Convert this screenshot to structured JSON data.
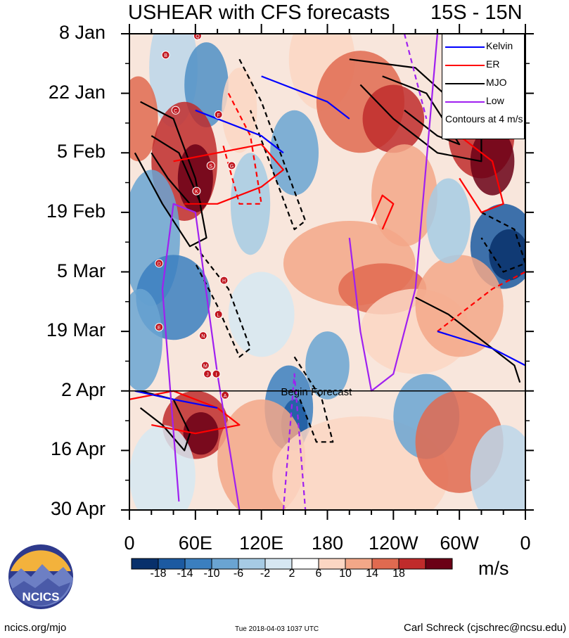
{
  "chart_data": {
    "type": "heatmap",
    "title": "USHEAR with CFS forecasts",
    "region": "15S - 15N",
    "y_axis": {
      "type": "time",
      "ticks": [
        "8 Jan",
        "22 Jan",
        "5 Feb",
        "19 Feb",
        "5 Mar",
        "19 Mar",
        "2 Apr",
        "16 Apr",
        "30 Apr"
      ],
      "range": [
        "8 Jan",
        "30 Apr"
      ]
    },
    "x_axis": {
      "type": "longitude",
      "ticks": [
        "0",
        "60E",
        "120E",
        "180",
        "120W",
        "60W",
        "0"
      ],
      "range_deg_east": [
        0,
        360
      ]
    },
    "colorbar": {
      "levels": [
        "-18",
        "-14",
        "-10",
        "-6",
        "-2",
        "2",
        "6",
        "10",
        "14",
        "18"
      ],
      "colors": [
        "#08306b",
        "#1c5aa1",
        "#3b7fbf",
        "#6aa4d2",
        "#a6cbe4",
        "#d6e7f2",
        "#ffffff",
        "#fbd6c3",
        "#f3a788",
        "#e06a50",
        "#c02b2b",
        "#6b0016"
      ],
      "units": "m/s"
    },
    "forecast_start": "2 Apr",
    "forecast_label": "Begin Forecast",
    "legend": [
      {
        "name": "Kelvin",
        "color": "#0000ff"
      },
      {
        "name": "ER",
        "color": "#ff0000"
      },
      {
        "name": "MJO",
        "color": "#000000"
      },
      {
        "name": "Low",
        "color": "#a020f0"
      }
    ],
    "contour_note": "Contours at 4 m/s",
    "storms": [
      {
        "label": "Q",
        "lon": 62,
        "day": 0.5
      },
      {
        "label": "B",
        "lon": 33,
        "day": 5
      },
      {
        "label": "C",
        "lon": 42,
        "day": 18
      },
      {
        "label": "F",
        "lon": 81,
        "day": 19
      },
      {
        "label": "S",
        "lon": 74,
        "day": 31
      },
      {
        "label": "G",
        "lon": 93,
        "day": 31
      },
      {
        "label": "K",
        "lon": 61,
        "day": 37
      },
      {
        "label": "D",
        "lon": 27,
        "day": 54
      },
      {
        "label": "H",
        "lon": 86,
        "day": 58
      },
      {
        "label": "L",
        "lon": 81,
        "day": 66
      },
      {
        "label": "E",
        "lon": 27,
        "day": 69
      },
      {
        "label": "N",
        "lon": 67,
        "day": 71
      },
      {
        "label": "M",
        "lon": 69,
        "day": 78
      },
      {
        "label": "J",
        "lon": 71,
        "day": 80
      },
      {
        "label": "I",
        "lon": 79,
        "day": 80
      },
      {
        "label": "A",
        "lon": 87,
        "day": 85
      }
    ]
  },
  "footer": {
    "site": "ncics.org/mjo",
    "date": "Tue 2018-04-03 1037 UTC",
    "author": "Carl Schreck (cjschrec@ncsu.edu)",
    "logo_text": "NCICS"
  }
}
